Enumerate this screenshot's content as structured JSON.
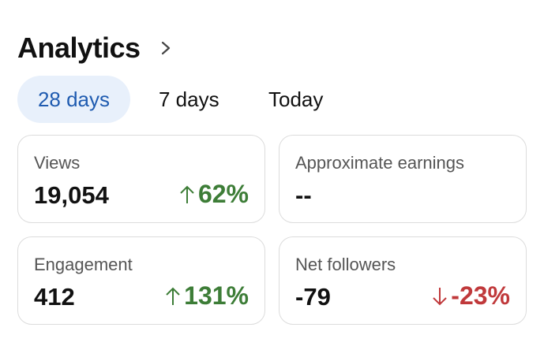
{
  "header": {
    "title": "Analytics"
  },
  "tabs": [
    "28 days",
    "7 days",
    "Today"
  ],
  "cards": [
    {
      "label": "Views",
      "value": "19,054",
      "change": "62%"
    },
    {
      "label": "Approximate earnings",
      "value": "--"
    },
    {
      "label": "Engagement",
      "value": "412",
      "change": "131%"
    },
    {
      "label": "Net followers",
      "value": "-79",
      "change": "-23%"
    }
  ]
}
